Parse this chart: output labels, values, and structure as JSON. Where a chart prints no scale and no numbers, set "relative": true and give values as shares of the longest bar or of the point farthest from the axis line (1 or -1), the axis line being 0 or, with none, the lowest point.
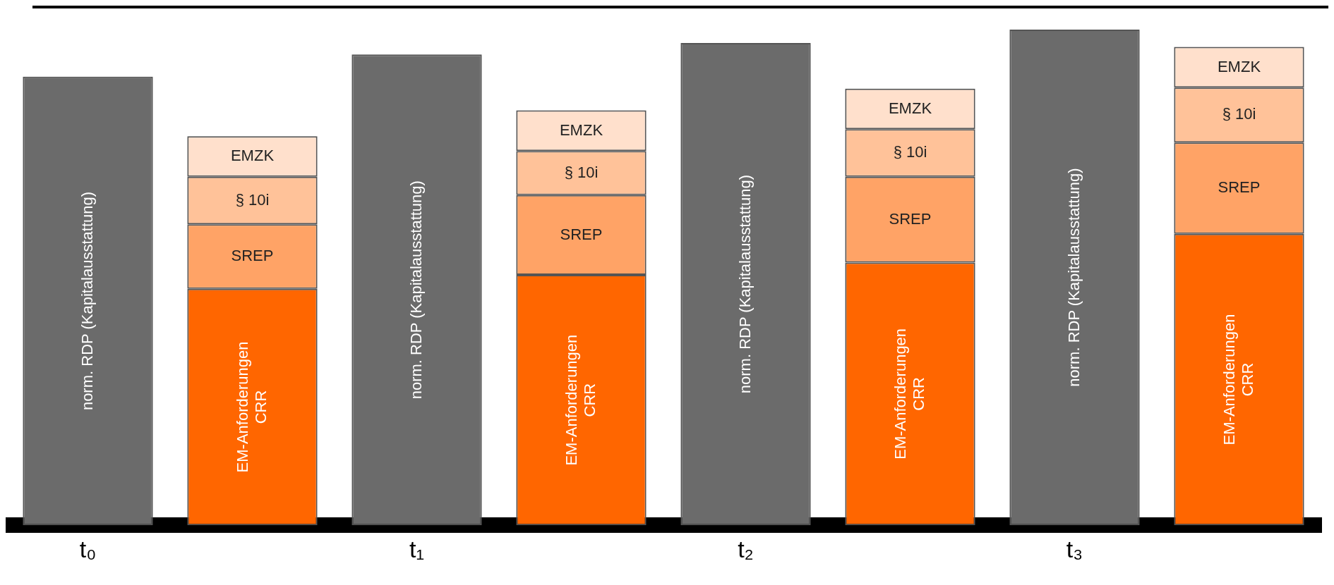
{
  "chart_data": {
    "type": "bar",
    "relative": true,
    "stacked": true,
    "grid": false,
    "legend": false,
    "categories": [
      "t₀",
      null,
      "t₁",
      null,
      "t₂",
      null,
      "t₃",
      null
    ],
    "series": [
      {
        "name": "norm. RDP (Kapitalausstattung)",
        "color": "#6b6b6b",
        "values": [
          0.905,
          null,
          0.95,
          null,
          0.973,
          null,
          1,
          null
        ]
      },
      {
        "name": "EM-Anforderungen CRR",
        "color": "#ff6600",
        "values": [
          null,
          0.477,
          null,
          0.505,
          null,
          0.53,
          null,
          0.588
        ]
      },
      {
        "name": "SREP",
        "color": "#ffa366",
        "values": [
          null,
          0.13,
          null,
          0.161,
          null,
          0.173,
          null,
          0.184
        ]
      },
      {
        "name": "§ 10i",
        "color": "#ffc299",
        "values": [
          null,
          0.096,
          null,
          0.089,
          null,
          0.096,
          null,
          0.111
        ]
      },
      {
        "name": "EMZK",
        "color": "#ffe0cc",
        "values": [
          null,
          0.082,
          null,
          0.082,
          null,
          0.082,
          null,
          0.082
        ]
      }
    ]
  }
}
